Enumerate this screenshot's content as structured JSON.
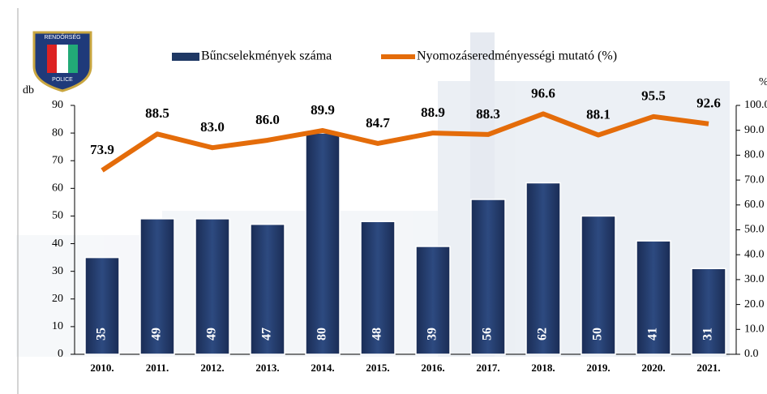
{
  "logo": {
    "top": "RENDŐRSÉG",
    "bottom": "POLICE"
  },
  "chart_data": {
    "type": "bar-line",
    "categories": [
      "2010.",
      "2011.",
      "2012.",
      "2013.",
      "2014.",
      "2015.",
      "2016.",
      "2017.",
      "2018.",
      "2019.",
      "2020.",
      "2021."
    ],
    "series": [
      {
        "name": "Bűncselekmények száma",
        "color": "#1f3864",
        "values": [
          35,
          49,
          49,
          47,
          80,
          48,
          39,
          56,
          62,
          50,
          41,
          31
        ]
      },
      {
        "name": "Nyomozáseredményességi mutató (%)",
        "color": "#e46c0a",
        "axis": "y2",
        "values": [
          73.9,
          88.5,
          83.0,
          86.0,
          89.9,
          84.7,
          88.9,
          88.3,
          96.6,
          88.1,
          95.5,
          92.6
        ],
        "value_labels": [
          "73.9",
          "88.5",
          "83.0",
          "86.0",
          "89.9",
          "84.7",
          "88.9",
          "88.3",
          "96.6",
          "88.1",
          "95.5",
          "92.6"
        ]
      }
    ],
    "ylabel": "db",
    "y2label": "%",
    "ylim": [
      0,
      90
    ],
    "yticks": [
      0,
      10,
      20,
      30,
      40,
      50,
      60,
      70,
      80,
      90
    ],
    "y2lim": [
      0,
      100
    ],
    "y2ticks": [
      {
        "value": 0,
        "label": "0.0"
      },
      {
        "value": 10,
        "label": "10.0"
      },
      {
        "value": 20,
        "label": "20.0"
      },
      {
        "value": 30,
        "label": "30.0"
      },
      {
        "value": 40,
        "label": "40.0"
      },
      {
        "value": 50,
        "label": "50.0"
      },
      {
        "value": 60,
        "label": "60.0"
      },
      {
        "value": 70,
        "label": "70.0"
      },
      {
        "value": 80,
        "label": "80.0"
      },
      {
        "value": 90,
        "label": "90.0"
      },
      {
        "value": 100,
        "label": "100.0"
      }
    ]
  }
}
